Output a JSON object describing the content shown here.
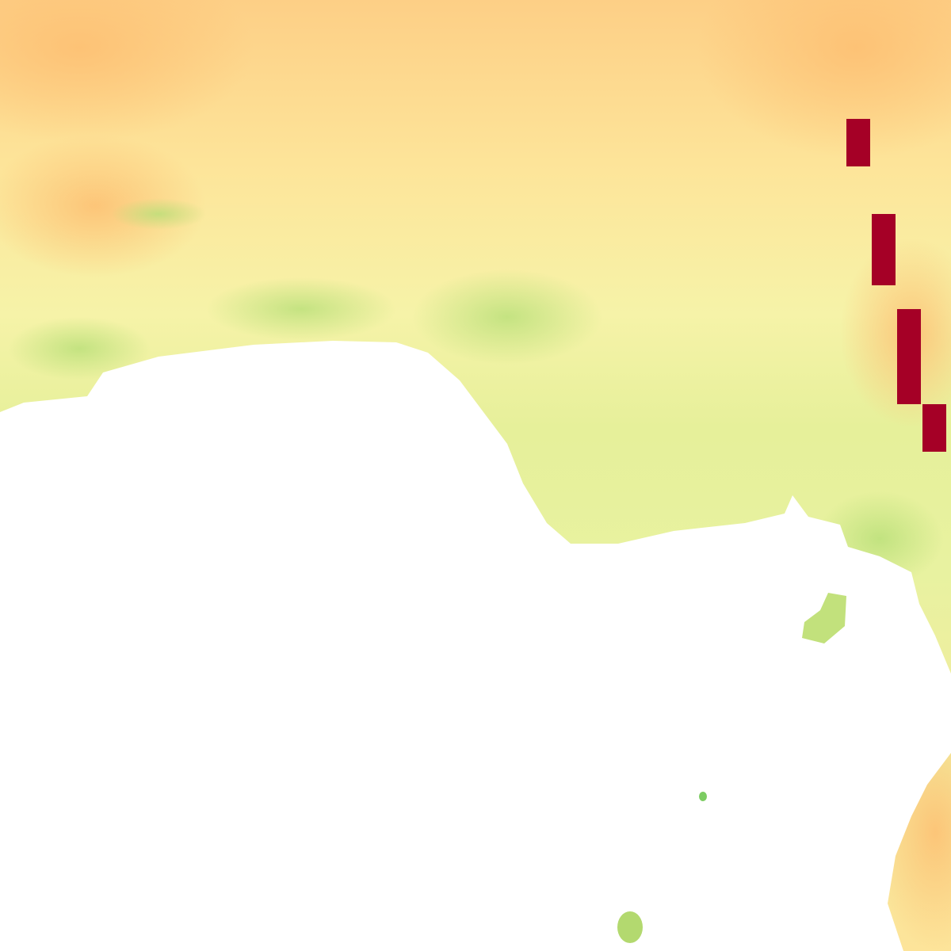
{
  "map": {
    "colormap": {
      "low": "#a50026",
      "dry": "#fdc47a",
      "mid": "#fff3a6",
      "moist": "#d9ef8b",
      "high": "#66bd63"
    },
    "no_data_color": "#ffffff",
    "highlight_color": "#a50026"
  }
}
